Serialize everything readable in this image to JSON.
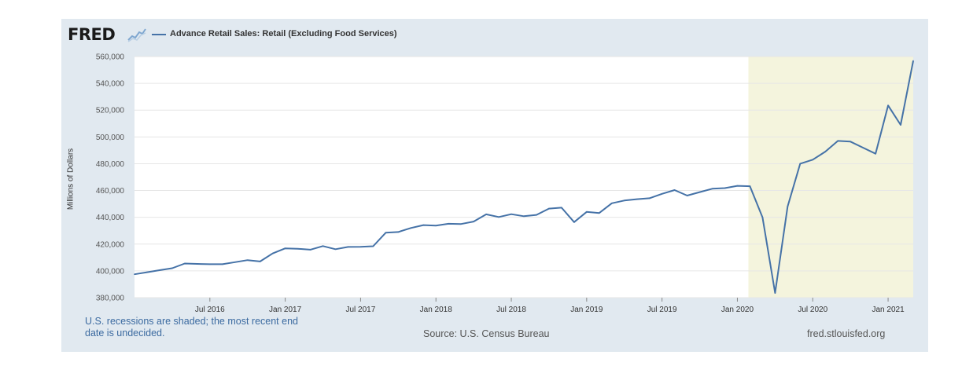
{
  "brand": {
    "name": "FRED"
  },
  "legend": {
    "series_label": "Advance Retail Sales: Retail (Excluding Food Services)"
  },
  "footer": {
    "recession_note": "U.S. recessions are shaded; the most recent end date is undecided.",
    "source": "Source: U.S. Census Bureau",
    "url": "fred.stlouisfed.org"
  },
  "colors": {
    "line": "#4572a7",
    "recession": "#f4f4dd",
    "frame": "#e1e9f0",
    "grid": "#e6e6e6"
  },
  "chart_data": {
    "type": "line",
    "title": "Advance Retail Sales: Retail (Excluding Food Services)",
    "xlabel": "",
    "ylabel": "Millions of Dollars",
    "ylim": [
      380000,
      560000
    ],
    "y_ticks": [
      380000,
      400000,
      420000,
      440000,
      460000,
      480000,
      500000,
      520000,
      540000,
      560000
    ],
    "y_tick_labels": [
      "380,000",
      "400,000",
      "420,000",
      "440,000",
      "460,000",
      "480,000",
      "500,000",
      "520,000",
      "540,000",
      "560,000"
    ],
    "x_range": [
      "2016-01",
      "2021-03"
    ],
    "x_ticks": [
      {
        "label": "Jul 2016",
        "date": "2016-07"
      },
      {
        "label": "Jan 2017",
        "date": "2017-01"
      },
      {
        "label": "Jul 2017",
        "date": "2017-07"
      },
      {
        "label": "Jan 2018",
        "date": "2018-01"
      },
      {
        "label": "Jul 2018",
        "date": "2018-07"
      },
      {
        "label": "Jan 2019",
        "date": "2019-01"
      },
      {
        "label": "Jul 2019",
        "date": "2019-07"
      },
      {
        "label": "Jan 2020",
        "date": "2020-01"
      },
      {
        "label": "Jul 2020",
        "date": "2020-07"
      },
      {
        "label": "Jan 2021",
        "date": "2021-01"
      }
    ],
    "recession": {
      "start": "2020-02",
      "end": "2021-03"
    },
    "series": [
      {
        "name": "Advance Retail Sales: Retail (Excluding Food Services)",
        "x": [
          "2016-01",
          "2016-02",
          "2016-03",
          "2016-04",
          "2016-05",
          "2016-06",
          "2016-07",
          "2016-08",
          "2016-09",
          "2016-10",
          "2016-11",
          "2016-12",
          "2017-01",
          "2017-02",
          "2017-03",
          "2017-04",
          "2017-05",
          "2017-06",
          "2017-07",
          "2017-08",
          "2017-09",
          "2017-10",
          "2017-11",
          "2017-12",
          "2018-01",
          "2018-02",
          "2018-03",
          "2018-04",
          "2018-05",
          "2018-06",
          "2018-07",
          "2018-08",
          "2018-09",
          "2018-10",
          "2018-11",
          "2018-12",
          "2019-01",
          "2019-02",
          "2019-03",
          "2019-04",
          "2019-05",
          "2019-06",
          "2019-07",
          "2019-08",
          "2019-09",
          "2019-10",
          "2019-11",
          "2019-12",
          "2020-01",
          "2020-02",
          "2020-03",
          "2020-04",
          "2020-05",
          "2020-06",
          "2020-07",
          "2020-08",
          "2020-09",
          "2020-10",
          "2020-11",
          "2020-12",
          "2021-01",
          "2021-02",
          "2021-03"
        ],
        "values": [
          397500,
          399000,
          400500,
          402000,
          405500,
          405200,
          405000,
          405000,
          406500,
          408000,
          407000,
          413000,
          416800,
          416500,
          415800,
          418500,
          416200,
          417900,
          418000,
          418400,
          428500,
          429000,
          432000,
          434200,
          433800,
          435200,
          435000,
          436800,
          442200,
          440200,
          442300,
          440800,
          441800,
          446500,
          447200,
          436400,
          444000,
          443200,
          450500,
          452500,
          453500,
          454200,
          457500,
          460300,
          456200,
          458800,
          461300,
          461800,
          463500,
          463200,
          440000,
          383500,
          448000,
          480000,
          483000,
          489000,
          497000,
          496500,
          492000,
          487500,
          523500,
          509000,
          556800
        ]
      }
    ]
  }
}
